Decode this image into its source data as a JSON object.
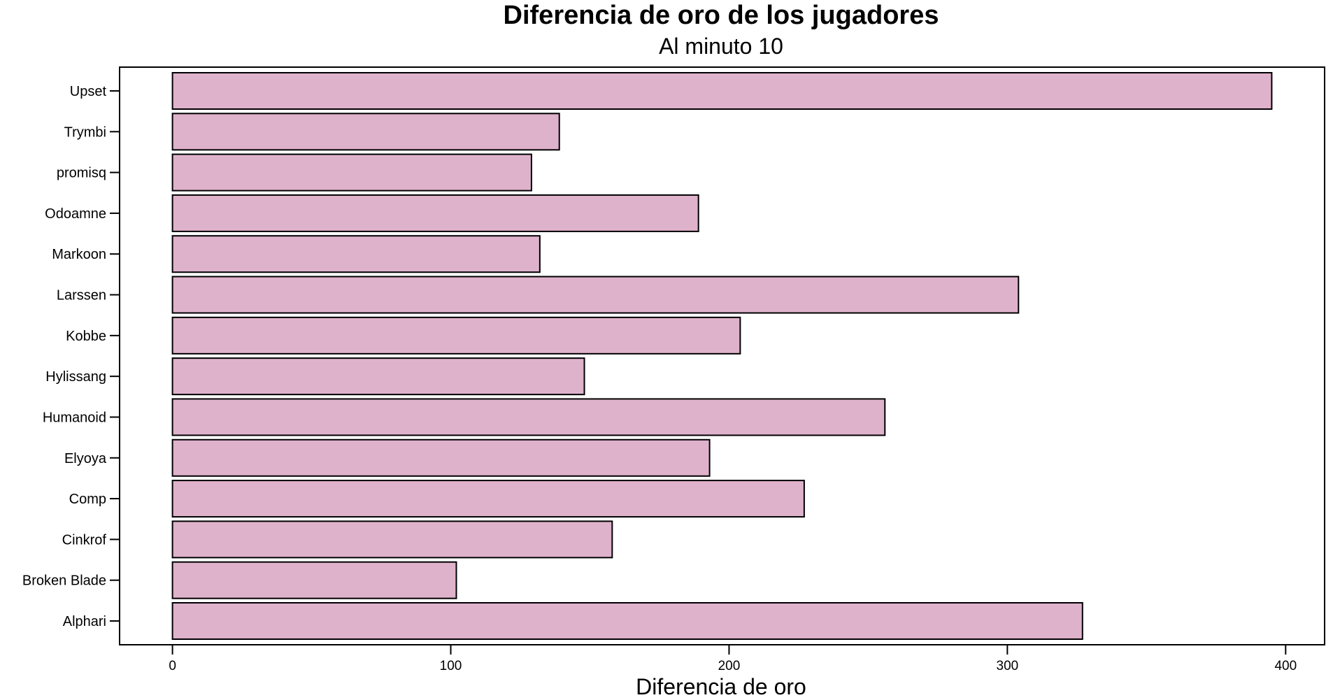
{
  "chart_data": {
    "type": "bar",
    "orientation": "horizontal",
    "title": "Diferencia de oro de los jugadores",
    "subtitle": "Al minuto 10",
    "xlabel": "Diferencia de oro",
    "ylabel": "",
    "xlim": [
      -19,
      414
    ],
    "xticks": [
      0,
      100,
      200,
      300,
      400
    ],
    "grid": false,
    "bar_color": "#dfb2cc",
    "bar_edge_color": "#000000",
    "categories": [
      "Upset",
      "Trymbi",
      "promisq",
      "Odoamne",
      "Markoon",
      "Larssen",
      "Kobbe",
      "Hylissang",
      "Humanoid",
      "Elyoya",
      "Comp",
      "Cinkrof",
      "Broken Blade",
      "Alphari"
    ],
    "values": [
      395,
      139,
      129,
      189,
      132,
      304,
      204,
      148,
      256,
      193,
      227,
      158,
      102,
      327
    ]
  }
}
